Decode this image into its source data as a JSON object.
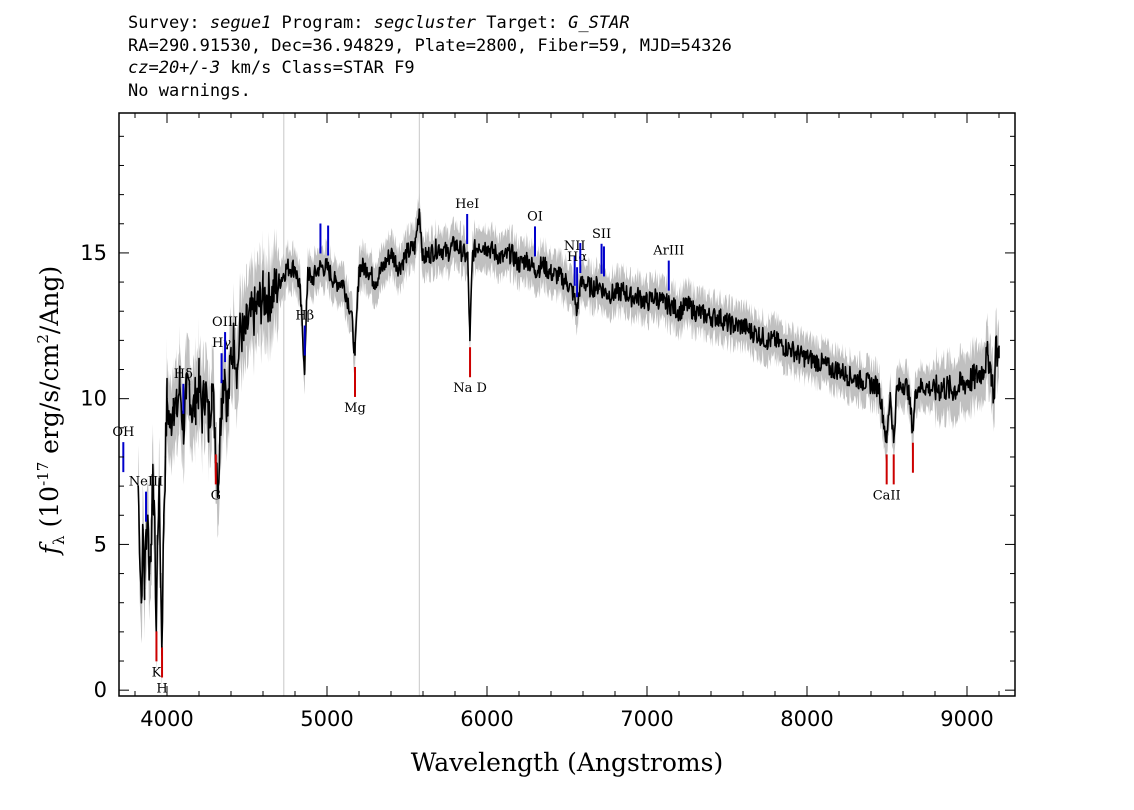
{
  "header": {
    "line1": {
      "survey_label": "Survey: ",
      "survey": "segue1",
      "program_label": " Program: ",
      "program": "segcluster",
      "target_label": " Target: ",
      "target": "G_STAR"
    },
    "line2": "RA=290.91530, Dec=36.94829, Plate=2800, Fiber=59, MJD=54326",
    "line3": {
      "cz": "cz=20+/-3",
      "rest": " km/s Class=STAR F9"
    },
    "line4": "No warnings."
  },
  "colors": {
    "flux": "#000000",
    "error": "#c0c0c0",
    "emission": "#0000cc",
    "absorption": "#cc0000",
    "axis": "#000000"
  },
  "chart_data": {
    "type": "line",
    "xlabel": "Wavelength (Angstroms)",
    "ylabel": "f_λ (10^-17 erg/s/cm^2/Ang)",
    "xlim": [
      3700,
      9300
    ],
    "ylim": [
      -0.2,
      19.8
    ],
    "x_ticks": [
      4000,
      5000,
      6000,
      7000,
      8000,
      9000
    ],
    "y_ticks": [
      0,
      5,
      10,
      15
    ],
    "grid": false,
    "series": [
      {
        "x": [
          3820,
          3840,
          3850,
          3860,
          3870,
          3880,
          3890,
          3900,
          3910,
          3920,
          3933,
          3940,
          3950,
          3960,
          3968,
          3980,
          3990,
          4000,
          4020,
          4040,
          4060,
          4080,
          4102,
          4120,
          4140,
          4160,
          4180,
          4200,
          4220,
          4240,
          4260,
          4280,
          4300,
          4320,
          4340,
          4360,
          4380,
          4400,
          4420,
          4440,
          4460,
          4480,
          4500,
          4550,
          4600,
          4650,
          4700,
          4750,
          4800,
          4830,
          4861,
          4880,
          4900,
          4950,
          5000,
          5050,
          5100,
          5150,
          5175,
          5200,
          5250,
          5300,
          5350,
          5400,
          5450,
          5500,
          5550,
          5577,
          5600,
          5650,
          5700,
          5750,
          5800,
          5850,
          5880,
          5893,
          5910,
          5950,
          6000,
          6050,
          6100,
          6150,
          6200,
          6250,
          6300,
          6350,
          6400,
          6450,
          6500,
          6540,
          6563,
          6580,
          6600,
          6650,
          6700,
          6750,
          6800,
          6850,
          6900,
          6950,
          7000,
          7050,
          7100,
          7150,
          7200,
          7250,
          7300,
          7350,
          7400,
          7450,
          7500,
          7550,
          7600,
          7650,
          7700,
          7750,
          7800,
          7850,
          7900,
          7950,
          8000,
          8050,
          8100,
          8150,
          8200,
          8250,
          8300,
          8350,
          8400,
          8450,
          8498,
          8520,
          8542,
          8560,
          8600,
          8630,
          8662,
          8680,
          8700,
          8750,
          8800,
          8850,
          8900,
          8950,
          9000,
          9050,
          9100,
          9130,
          9150,
          9170,
          9180,
          9190,
          9200
        ],
        "values": [
          7.0,
          3.0,
          5.5,
          3.5,
          5.5,
          6.0,
          4.0,
          5.0,
          7.0,
          6.5,
          2.0,
          5.0,
          7.0,
          4.0,
          1.5,
          6.0,
          8.0,
          10.0,
          9.0,
          10.0,
          9.5,
          10.5,
          9.0,
          10.0,
          10.5,
          9.5,
          10.0,
          10.5,
          9.5,
          10.5,
          9.0,
          10.5,
          9.0,
          7.0,
          10.0,
          11.0,
          9.5,
          11.5,
          12.0,
          11.0,
          12.5,
          12.0,
          12.5,
          13.0,
          13.5,
          13.5,
          14.0,
          14.5,
          14.5,
          13.8,
          11.0,
          14.5,
          14.0,
          14.5,
          14.5,
          14.0,
          14.0,
          13.0,
          11.5,
          14.5,
          14.5,
          14.0,
          14.5,
          15.0,
          14.5,
          15.0,
          15.2,
          16.5,
          14.8,
          15.0,
          15.2,
          15.0,
          15.3,
          15.0,
          14.8,
          12.0,
          15.0,
          15.3,
          15.2,
          15.0,
          14.8,
          15.0,
          14.6,
          14.8,
          14.4,
          14.6,
          14.3,
          14.2,
          14.0,
          13.6,
          13.0,
          13.8,
          14.0,
          13.8,
          13.9,
          13.6,
          13.6,
          13.7,
          13.5,
          13.5,
          13.3,
          13.5,
          13.3,
          13.2,
          13.0,
          13.2,
          13.0,
          12.9,
          12.8,
          12.8,
          12.6,
          12.5,
          12.5,
          12.3,
          12.2,
          12.0,
          12.0,
          11.8,
          11.7,
          11.5,
          11.4,
          11.3,
          11.2,
          11.0,
          11.0,
          10.8,
          10.7,
          10.6,
          10.5,
          10.4,
          8.5,
          10.2,
          8.5,
          10.3,
          10.5,
          10.4,
          8.9,
          10.3,
          10.4,
          10.4,
          10.3,
          10.4,
          10.3,
          10.4,
          10.6,
          10.7,
          11.0,
          11.5,
          11.0,
          10.0,
          12.0,
          11.3,
          11.8
        ]
      }
    ],
    "lines": [
      {
        "label": "OH",
        "wl": 3727,
        "kind": "emission"
      },
      {
        "label": "NeIII",
        "wl": 3869,
        "kind": "emission"
      },
      {
        "label": "K",
        "wl": 3934,
        "kind": "absorption"
      },
      {
        "label": "H",
        "wl": 3969,
        "kind": "absorption"
      },
      {
        "label": "Hδ",
        "wl": 4102,
        "kind": "emission"
      },
      {
        "label": "G",
        "wl": 4305,
        "kind": "absorption"
      },
      {
        "label": "Hγ",
        "wl": 4341,
        "kind": "emission"
      },
      {
        "label": "OIII",
        "wl": 4363,
        "kind": "emission"
      },
      {
        "label": "Hβ",
        "wl": 4861,
        "kind": "emission"
      },
      {
        "label": "OIII",
        "wl": 4959,
        "kind": "emission"
      },
      {
        "label": "OIII",
        "wl": 5007,
        "kind": "emission"
      },
      {
        "label": "Mg",
        "wl": 5175,
        "kind": "absorption"
      },
      {
        "label": "HeI",
        "wl": 5876,
        "kind": "emission"
      },
      {
        "label": "Na D",
        "wl": 5894,
        "kind": "absorption"
      },
      {
        "label": "OI",
        "wl": 6300,
        "kind": "emission"
      },
      {
        "label": "NII",
        "wl": 6548,
        "kind": "emission"
      },
      {
        "label": "Hα",
        "wl": 6563,
        "kind": "emission"
      },
      {
        "label": "NII",
        "wl": 6583,
        "kind": "emission"
      },
      {
        "label": "SII",
        "wl": 6716,
        "kind": "emission"
      },
      {
        "label": "SII",
        "wl": 6731,
        "kind": "emission"
      },
      {
        "label": "ArIII",
        "wl": 7136,
        "kind": "emission"
      },
      {
        "label": "CaII",
        "wl": 8498,
        "kind": "absorption"
      },
      {
        "label": "CaII",
        "wl": 8542,
        "kind": "absorption"
      },
      {
        "label": "CaII",
        "wl": 8662,
        "kind": "absorption"
      }
    ],
    "vertical_markers": [
      4730,
      5577
    ]
  }
}
